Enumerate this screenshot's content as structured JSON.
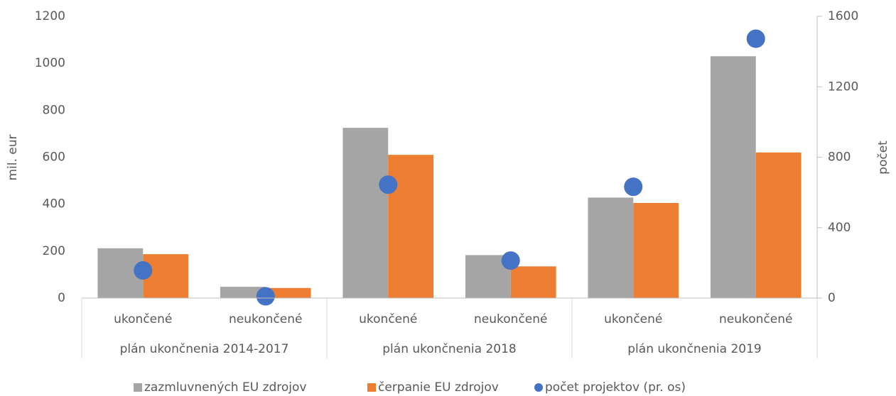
{
  "chart_data": {
    "type": "bar",
    "categories": [
      "ukončené",
      "neukončené",
      "ukončené",
      "neukončené",
      "ukončené",
      "neukončené"
    ],
    "category_groups": [
      "plán ukončnenia 2014-2017",
      "plán ukončnenia 2018",
      "plán ukončnenia 2019"
    ],
    "series": [
      {
        "name": "zazmluvnených EU zdrojov",
        "color": "#a5a5a5",
        "type": "bar",
        "values": [
          212,
          48,
          725,
          183,
          428,
          1030
        ]
      },
      {
        "name": "čerpanie EU zdrojov",
        "color": "#ed7d31",
        "type": "bar",
        "values": [
          187,
          43,
          610,
          135,
          405,
          620
        ]
      },
      {
        "name": "počet projektov (pr. os)",
        "color": "#4472c4",
        "type": "scatter",
        "axis": "y2",
        "values": [
          157,
          10,
          644,
          213,
          632,
          1473
        ]
      }
    ],
    "y_label": "mil. eur",
    "y2_label": "počet",
    "ylim": [
      0,
      1200
    ],
    "yticks": [
      0,
      200,
      400,
      600,
      800,
      1000,
      1200
    ],
    "y2lim": [
      0,
      1600
    ],
    "y2ticks": [
      0,
      400,
      800,
      1200,
      1600
    ],
    "legend": "bottom"
  }
}
